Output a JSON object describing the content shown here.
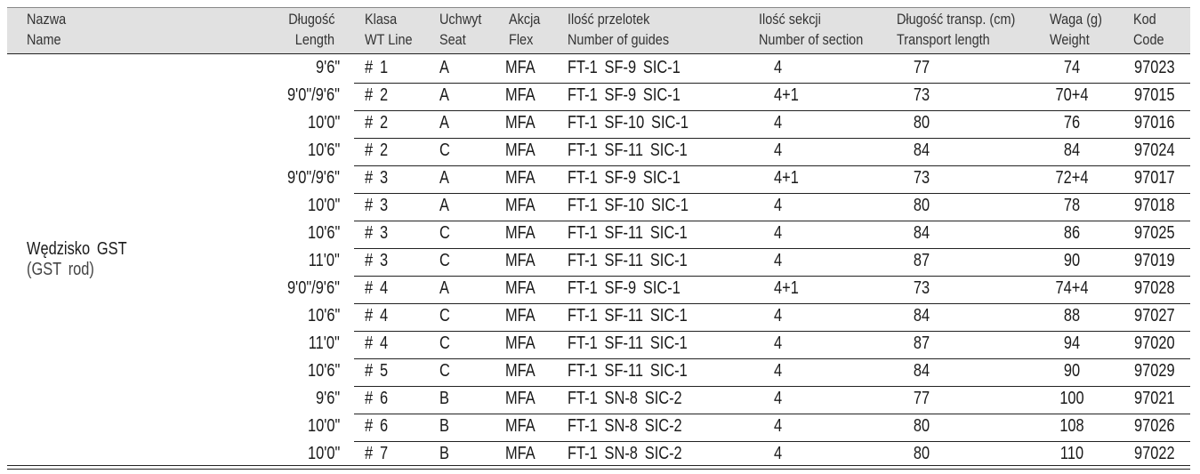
{
  "header": {
    "columns": [
      {
        "pl": "Nazwa",
        "en": "Name"
      },
      {
        "pl": "Długość",
        "en": "Length"
      },
      {
        "pl": "Klasa",
        "en": "WT Line"
      },
      {
        "pl": "Uchwyt",
        "en": "Seat"
      },
      {
        "pl": "Akcja",
        "en": "Flex"
      },
      {
        "pl": "Ilość przelotek",
        "en": "Number of guides"
      },
      {
        "pl": "Ilość sekcji",
        "en": "Number of section"
      },
      {
        "pl": "Długość transp. (cm)",
        "en": "Transport length"
      },
      {
        "pl": "Waga (g)",
        "en": "Weight"
      },
      {
        "pl": "Kod",
        "en": "Code"
      }
    ]
  },
  "product": {
    "name": "Wędzisko GST",
    "subtitle": "(GST rod)"
  },
  "table": {
    "rows": [
      [
        "9'6\"",
        "# 1",
        "A",
        "MFA",
        "FT-1 SF-9 SIC-1",
        "4",
        "77",
        "74",
        "97023"
      ],
      [
        "9'0\"/9'6\"",
        "# 2",
        "A",
        "MFA",
        "FT-1 SF-9 SIC-1",
        "4+1",
        "73",
        "70+4",
        "97015"
      ],
      [
        "10'0\"",
        "# 2",
        "A",
        "MFA",
        "FT-1 SF-10 SIC-1",
        "4",
        "80",
        "76",
        "97016"
      ],
      [
        "10'6\"",
        "# 2",
        "C",
        "MFA",
        "FT-1 SF-11 SIC-1",
        "4",
        "84",
        "84",
        "97024"
      ],
      [
        "9'0\"/9'6\"",
        "# 3",
        "A",
        "MFA",
        "FT-1 SF-9 SIC-1",
        "4+1",
        "73",
        "72+4",
        "97017"
      ],
      [
        "10'0\"",
        "# 3",
        "A",
        "MFA",
        "FT-1 SF-10 SIC-1",
        "4",
        "80",
        "78",
        "97018"
      ],
      [
        "10'6\"",
        "# 3",
        "C",
        "MFA",
        "FT-1 SF-11 SIC-1",
        "4",
        "84",
        "86",
        "97025"
      ],
      [
        "11'0\"",
        "# 3",
        "C",
        "MFA",
        "FT-1 SF-11 SIC-1",
        "4",
        "87",
        "90",
        "97019"
      ],
      [
        "9'0\"/9'6\"",
        "# 4",
        "A",
        "MFA",
        "FT-1 SF-9 SIC-1",
        "4+1",
        "73",
        "74+4",
        "97028"
      ],
      [
        "10'6\"",
        "# 4",
        "C",
        "MFA",
        "FT-1 SF-11 SIC-1",
        "4",
        "84",
        "88",
        "97027"
      ],
      [
        "11'0\"",
        "# 4",
        "C",
        "MFA",
        "FT-1 SF-11 SIC-1",
        "4",
        "87",
        "94",
        "97020"
      ],
      [
        "10'6\"",
        "# 5",
        "C",
        "MFA",
        "FT-1 SF-11 SIC-1",
        "4",
        "84",
        "90",
        "97029"
      ],
      [
        "9'6\"",
        "# 6",
        "B",
        "MFA",
        "FT-1 SN-8 SIC-2",
        "4",
        "77",
        "100",
        "97021"
      ],
      [
        "10'0\"",
        "# 6",
        "B",
        "MFA",
        "FT-1 SN-8 SIC-2",
        "4",
        "80",
        "108",
        "97026"
      ],
      [
        "10'0\"",
        "# 7",
        "B",
        "MFA",
        "FT-1 SN-8 SIC-2",
        "4",
        "80",
        "110",
        "97022"
      ]
    ]
  }
}
